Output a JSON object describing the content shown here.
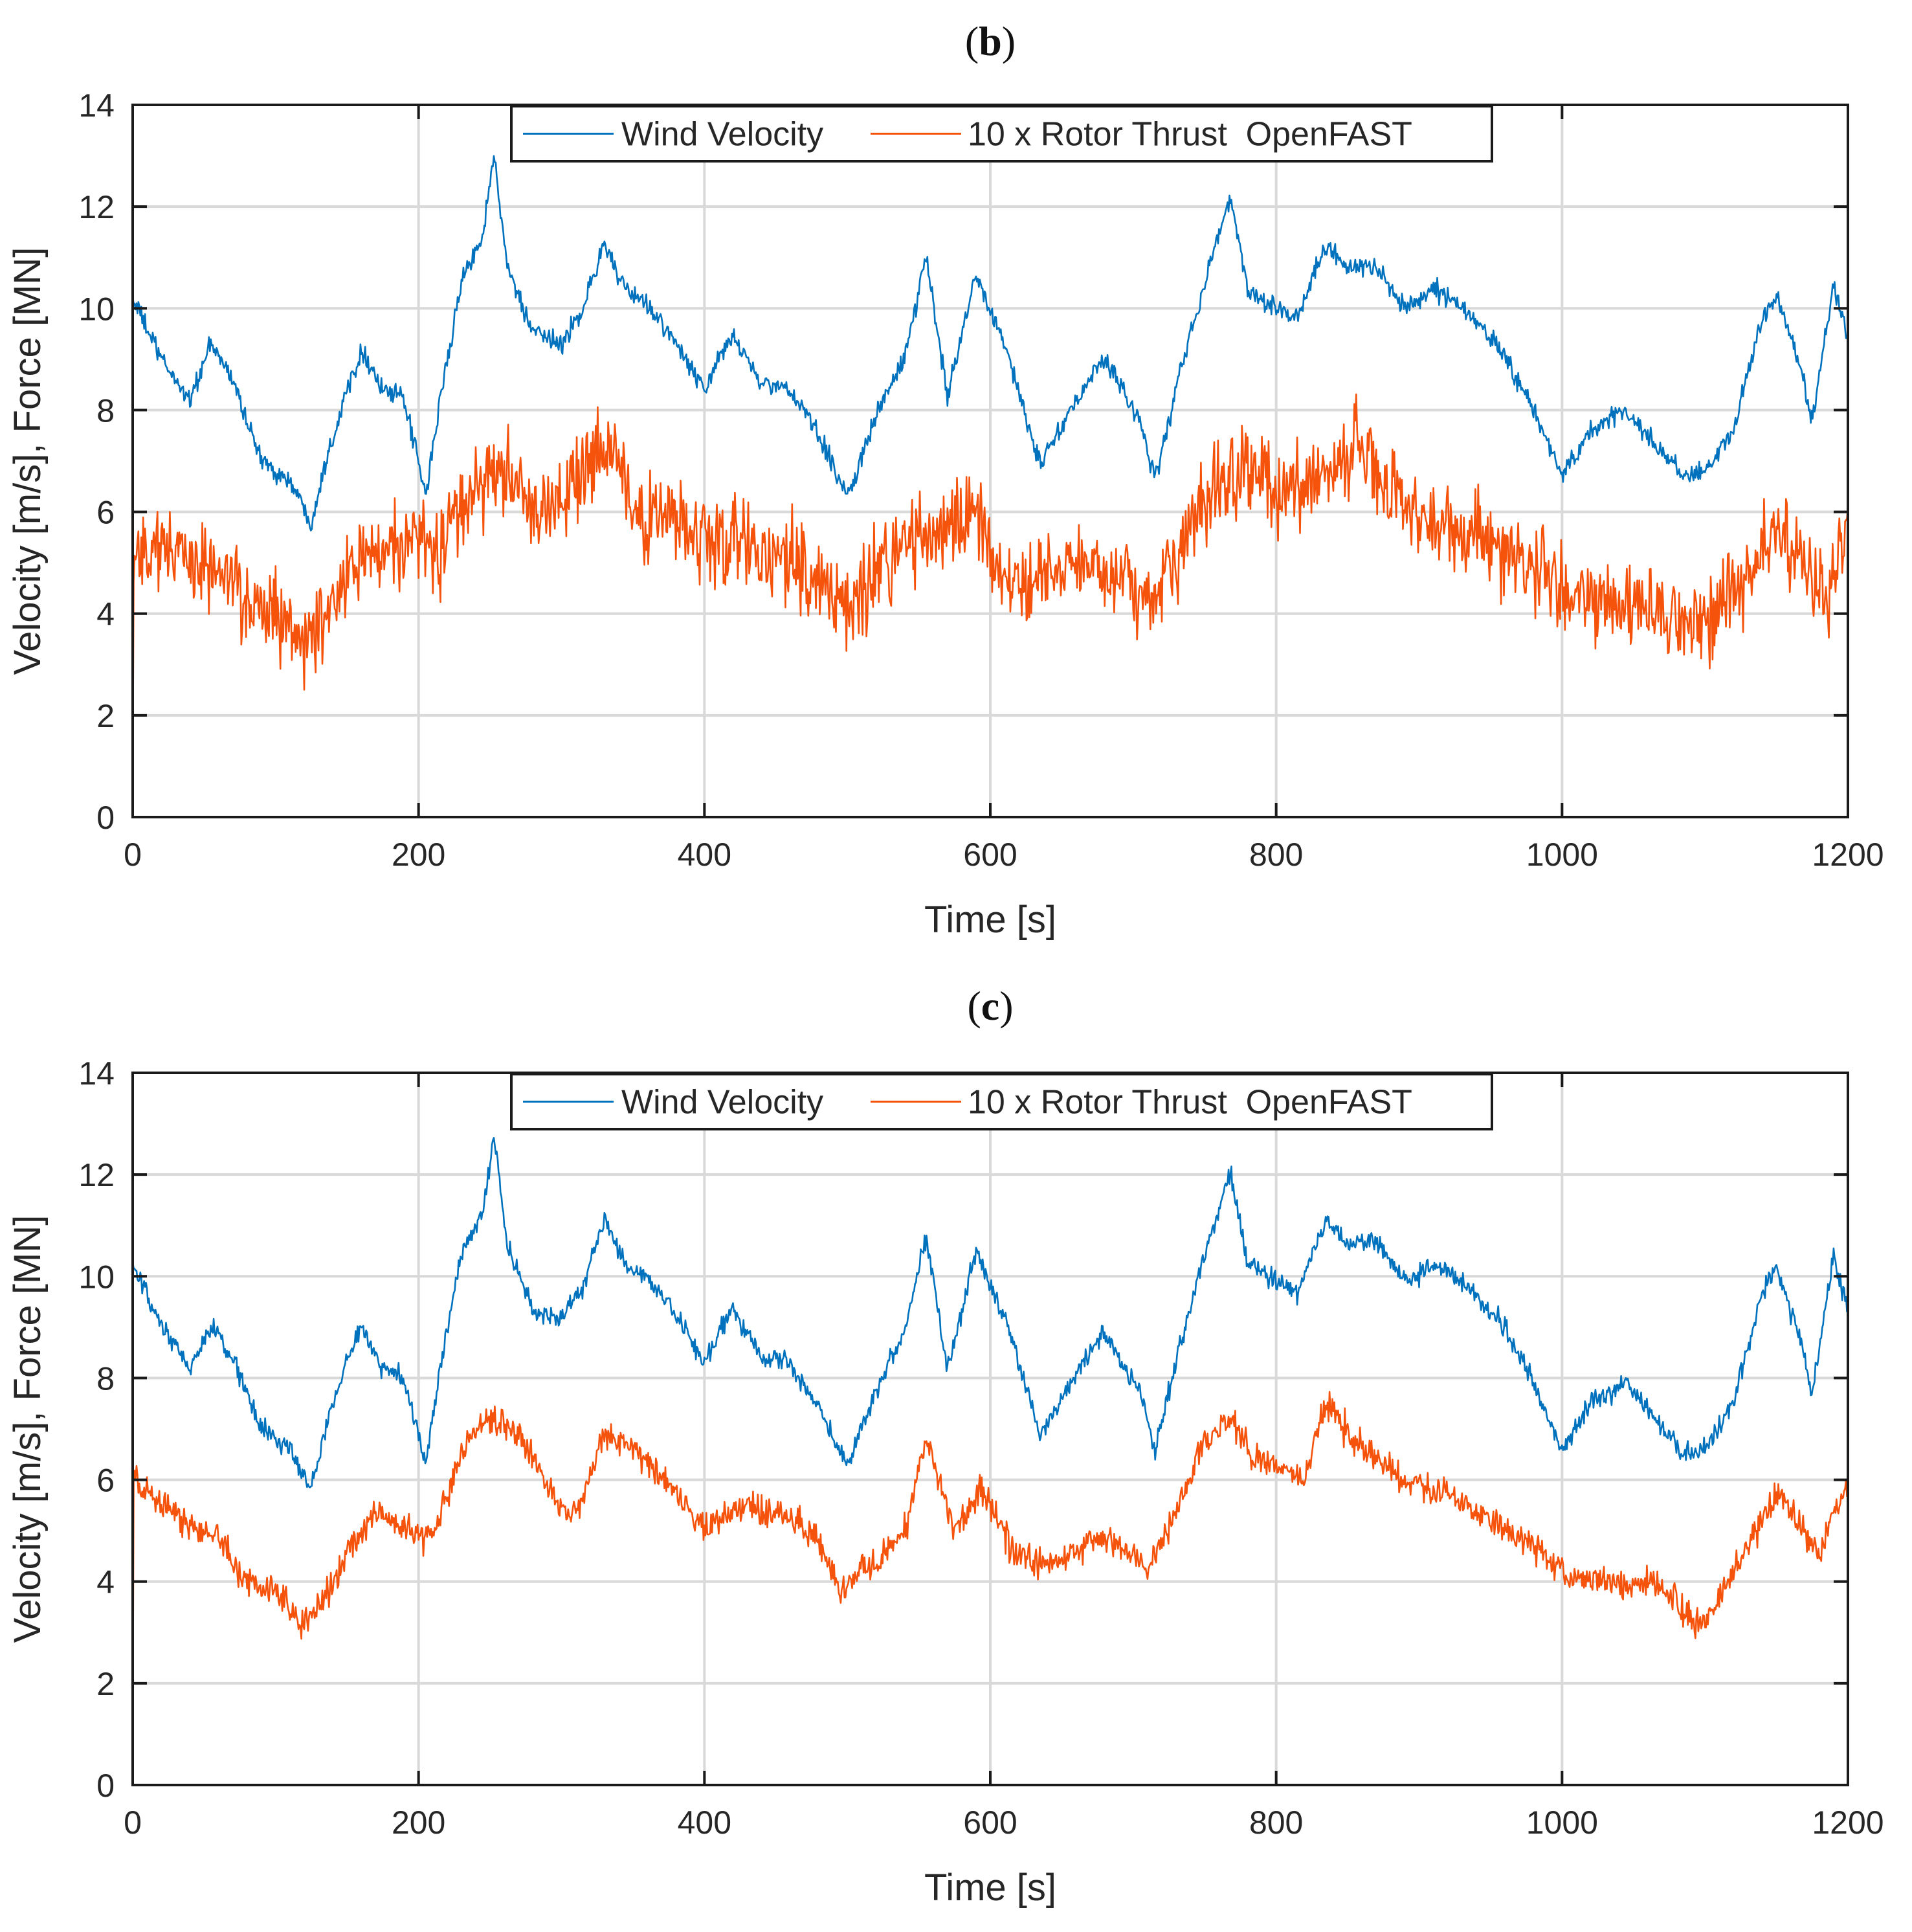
{
  "chart_data": [
    {
      "type": "line",
      "panel_label": "b",
      "xlabel": "Time [s]",
      "ylabel": "Velocity [m/s], Force [MN]",
      "xlim": [
        0,
        1200
      ],
      "ylim": [
        0,
        14
      ],
      "xticks": [
        0,
        200,
        400,
        600,
        800,
        1000,
        1200
      ],
      "yticks": [
        0,
        2,
        4,
        6,
        8,
        10,
        12,
        14
      ],
      "grid": true,
      "legend_position": "top-center",
      "series": [
        {
          "name": "Wind Velocity",
          "color": "#0072BD",
          "noise": 0.3,
          "points": [
            [
              0,
              10.2
            ],
            [
              20,
              9.0
            ],
            [
              40,
              8.2
            ],
            [
              55,
              9.3
            ],
            [
              70,
              8.6
            ],
            [
              90,
              7.0
            ],
            [
              110,
              6.6
            ],
            [
              125,
              5.8
            ],
            [
              135,
              7.0
            ],
            [
              150,
              8.4
            ],
            [
              160,
              9.2
            ],
            [
              175,
              8.4
            ],
            [
              190,
              8.2
            ],
            [
              205,
              6.3
            ],
            [
              215,
              8.2
            ],
            [
              230,
              10.5
            ],
            [
              245,
              11.5
            ],
            [
              253,
              13.0
            ],
            [
              262,
              10.8
            ],
            [
              280,
              9.5
            ],
            [
              300,
              9.3
            ],
            [
              315,
              10.0
            ],
            [
              330,
              11.3
            ],
            [
              345,
              10.3
            ],
            [
              360,
              10.1
            ],
            [
              380,
              9.3
            ],
            [
              400,
              8.4
            ],
            [
              420,
              9.5
            ],
            [
              440,
              8.5
            ],
            [
              460,
              8.4
            ],
            [
              480,
              7.5
            ],
            [
              500,
              6.3
            ],
            [
              520,
              7.9
            ],
            [
              540,
              9.0
            ],
            [
              555,
              11.0
            ],
            [
              570,
              8.3
            ],
            [
              590,
              10.7
            ],
            [
              610,
              9.3
            ],
            [
              635,
              6.9
            ],
            [
              660,
              8.2
            ],
            [
              680,
              9.0
            ],
            [
              705,
              7.8
            ],
            [
              715,
              6.6
            ],
            [
              735,
              9.0
            ],
            [
              750,
              10.5
            ],
            [
              768,
              12.2
            ],
            [
              780,
              10.4
            ],
            [
              800,
              10.0
            ],
            [
              815,
              9.8
            ],
            [
              835,
              11.3
            ],
            [
              850,
              10.8
            ],
            [
              870,
              10.8
            ],
            [
              890,
              10.0
            ],
            [
              910,
              10.4
            ],
            [
              930,
              10.0
            ],
            [
              955,
              9.3
            ],
            [
              975,
              8.3
            ],
            [
              1000,
              6.7
            ],
            [
              1020,
              7.6
            ],
            [
              1045,
              8.0
            ],
            [
              1065,
              7.3
            ],
            [
              1085,
              6.7
            ],
            [
              1100,
              6.8
            ],
            [
              1120,
              7.6
            ],
            [
              1140,
              9.8
            ],
            [
              1150,
              10.3
            ],
            [
              1165,
              9.0
            ],
            [
              1175,
              7.8
            ],
            [
              1190,
              10.5
            ],
            [
              1200,
              9.4
            ]
          ]
        },
        {
          "name": "10 x Rotor Thrust  OpenFAST",
          "color": "#F5520C",
          "noise": 1.3,
          "points": [
            [
              0,
              5.2
            ],
            [
              20,
              5.3
            ],
            [
              40,
              5.0
            ],
            [
              60,
              4.8
            ],
            [
              80,
              4.2
            ],
            [
              100,
              3.9
            ],
            [
              120,
              3.4
            ],
            [
              140,
              4.3
            ],
            [
              160,
              5.0
            ],
            [
              180,
              5.4
            ],
            [
              200,
              5.5
            ],
            [
              220,
              5.3
            ],
            [
              240,
              6.6
            ],
            [
              260,
              6.8
            ],
            [
              280,
              6.0
            ],
            [
              300,
              6.2
            ],
            [
              320,
              6.8
            ],
            [
              335,
              7.2
            ],
            [
              350,
              6.0
            ],
            [
              380,
              5.8
            ],
            [
              400,
              5.4
            ],
            [
              430,
              5.4
            ],
            [
              460,
              5.1
            ],
            [
              480,
              4.6
            ],
            [
              500,
              4.2
            ],
            [
              520,
              4.8
            ],
            [
              540,
              5.4
            ],
            [
              560,
              5.6
            ],
            [
              590,
              5.8
            ],
            [
              610,
              4.6
            ],
            [
              630,
              4.6
            ],
            [
              660,
              5.0
            ],
            [
              690,
              4.8
            ],
            [
              715,
              4.2
            ],
            [
              740,
              5.8
            ],
            [
              760,
              6.6
            ],
            [
              780,
              6.8
            ],
            [
              800,
              6.4
            ],
            [
              820,
              6.6
            ],
            [
              840,
              7.0
            ],
            [
              860,
              7.2
            ],
            [
              880,
              6.4
            ],
            [
              900,
              5.9
            ],
            [
              930,
              5.6
            ],
            [
              960,
              5.2
            ],
            [
              990,
              4.8
            ],
            [
              1010,
              4.2
            ],
            [
              1040,
              4.1
            ],
            [
              1070,
              4.0
            ],
            [
              1090,
              3.8
            ],
            [
              1110,
              4.2
            ],
            [
              1130,
              4.8
            ],
            [
              1150,
              5.6
            ],
            [
              1170,
              5.0
            ],
            [
              1185,
              4.2
            ],
            [
              1200,
              5.8
            ]
          ]
        }
      ]
    },
    {
      "type": "line",
      "panel_label": "c",
      "xlabel": "Time [s]",
      "ylabel": "Velocity [m/s], Force [MN]",
      "xlim": [
        0,
        1200
      ],
      "ylim": [
        0,
        14
      ],
      "xticks": [
        0,
        200,
        400,
        600,
        800,
        1000,
        1200
      ],
      "yticks": [
        0,
        2,
        4,
        6,
        8,
        10,
        12,
        14
      ],
      "grid": true,
      "legend_position": "top-center",
      "series": [
        {
          "name": "Wind Velocity",
          "color": "#0072BD",
          "noise": 0.3,
          "points": [
            [
              0,
              10.2
            ],
            [
              20,
              9.0
            ],
            [
              40,
              8.2
            ],
            [
              55,
              9.0
            ],
            [
              70,
              8.4
            ],
            [
              90,
              7.0
            ],
            [
              110,
              6.6
            ],
            [
              125,
              5.8
            ],
            [
              135,
              7.0
            ],
            [
              150,
              8.4
            ],
            [
              160,
              9.0
            ],
            [
              175,
              8.2
            ],
            [
              190,
              8.0
            ],
            [
              205,
              6.3
            ],
            [
              215,
              8.2
            ],
            [
              230,
              10.4
            ],
            [
              245,
              11.3
            ],
            [
              253,
              12.8
            ],
            [
              262,
              10.6
            ],
            [
              280,
              9.3
            ],
            [
              300,
              9.2
            ],
            [
              315,
              9.8
            ],
            [
              330,
              11.1
            ],
            [
              345,
              10.2
            ],
            [
              360,
              10.0
            ],
            [
              380,
              9.2
            ],
            [
              400,
              8.3
            ],
            [
              420,
              9.4
            ],
            [
              440,
              8.4
            ],
            [
              460,
              8.3
            ],
            [
              480,
              7.4
            ],
            [
              500,
              6.3
            ],
            [
              520,
              7.8
            ],
            [
              540,
              8.9
            ],
            [
              555,
              10.8
            ],
            [
              570,
              8.2
            ],
            [
              590,
              10.5
            ],
            [
              610,
              9.2
            ],
            [
              635,
              6.9
            ],
            [
              660,
              8.1
            ],
            [
              680,
              8.9
            ],
            [
              705,
              7.7
            ],
            [
              715,
              6.6
            ],
            [
              735,
              8.9
            ],
            [
              750,
              10.4
            ],
            [
              768,
              12.1
            ],
            [
              780,
              10.3
            ],
            [
              800,
              9.9
            ],
            [
              815,
              9.7
            ],
            [
              835,
              11.1
            ],
            [
              850,
              10.6
            ],
            [
              870,
              10.7
            ],
            [
              890,
              9.9
            ],
            [
              910,
              10.2
            ],
            [
              930,
              9.9
            ],
            [
              955,
              9.2
            ],
            [
              975,
              8.2
            ],
            [
              1000,
              6.6
            ],
            [
              1020,
              7.5
            ],
            [
              1045,
              7.9
            ],
            [
              1065,
              7.2
            ],
            [
              1085,
              6.5
            ],
            [
              1100,
              6.6
            ],
            [
              1120,
              7.5
            ],
            [
              1140,
              9.7
            ],
            [
              1150,
              10.2
            ],
            [
              1165,
              8.9
            ],
            [
              1175,
              7.7
            ],
            [
              1190,
              10.4
            ],
            [
              1200,
              9.3
            ]
          ]
        },
        {
          "name": "10 x Rotor Thrust  OpenFAST",
          "color": "#F5520C",
          "noise": 0.45,
          "points": [
            [
              0,
              6.0
            ],
            [
              15,
              5.6
            ],
            [
              40,
              5.1
            ],
            [
              60,
              4.9
            ],
            [
              80,
              4.0
            ],
            [
              100,
              3.8
            ],
            [
              115,
              3.2
            ],
            [
              130,
              3.5
            ],
            [
              150,
              4.5
            ],
            [
              170,
              5.4
            ],
            [
              190,
              5.0
            ],
            [
              210,
              4.9
            ],
            [
              230,
              6.5
            ],
            [
              250,
              7.2
            ],
            [
              270,
              6.9
            ],
            [
              290,
              5.8
            ],
            [
              310,
              5.2
            ],
            [
              330,
              7.0
            ],
            [
              350,
              6.6
            ],
            [
              380,
              5.8
            ],
            [
              400,
              5.0
            ],
            [
              430,
              5.5
            ],
            [
              460,
              5.2
            ],
            [
              480,
              4.8
            ],
            [
              495,
              3.8
            ],
            [
              520,
              4.4
            ],
            [
              540,
              5.0
            ],
            [
              555,
              6.8
            ],
            [
              575,
              5.0
            ],
            [
              595,
              5.8
            ],
            [
              615,
              4.6
            ],
            [
              640,
              4.3
            ],
            [
              660,
              4.6
            ],
            [
              680,
              4.9
            ],
            [
              700,
              4.5
            ],
            [
              710,
              4.2
            ],
            [
              730,
              5.4
            ],
            [
              750,
              6.8
            ],
            [
              768,
              7.2
            ],
            [
              785,
              6.4
            ],
            [
              805,
              6.2
            ],
            [
              820,
              6.0
            ],
            [
              835,
              7.6
            ],
            [
              850,
              6.9
            ],
            [
              870,
              6.5
            ],
            [
              890,
              6.0
            ],
            [
              910,
              5.8
            ],
            [
              930,
              5.6
            ],
            [
              950,
              5.2
            ],
            [
              975,
              4.8
            ],
            [
              1000,
              4.2
            ],
            [
              1020,
              4.0
            ],
            [
              1045,
              3.9
            ],
            [
              1070,
              4.0
            ],
            [
              1090,
              3.2
            ],
            [
              1100,
              3.2
            ],
            [
              1120,
              4.2
            ],
            [
              1140,
              5.2
            ],
            [
              1150,
              5.8
            ],
            [
              1165,
              5.2
            ],
            [
              1180,
              4.6
            ],
            [
              1200,
              6.0
            ]
          ]
        }
      ]
    }
  ]
}
